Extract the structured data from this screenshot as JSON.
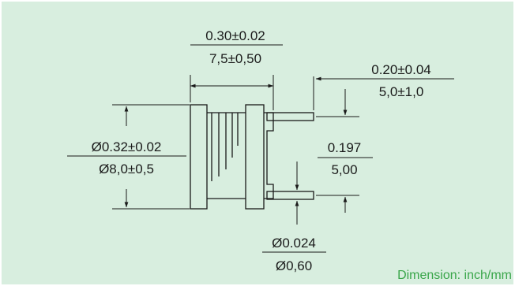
{
  "dimensions": {
    "length": {
      "inch": "0.30±0.02",
      "mm": "7,5±0,50"
    },
    "lead_length": {
      "inch": "0.20±0.04",
      "mm": "5,0±1,0"
    },
    "body_diameter": {
      "inch": "Ø0.32±0.02",
      "mm": "Ø8,0±0,5"
    },
    "lead_spacing": {
      "inch": "0.197",
      "mm": "5,00"
    },
    "lead_diameter": {
      "inch": "Ø0.024",
      "mm": "Ø0,60"
    }
  },
  "note": "Dimension: inch/mm",
  "colors": {
    "panel": "#d8eedf",
    "line": "#1a1a1a",
    "note": "#3aa64a"
  }
}
